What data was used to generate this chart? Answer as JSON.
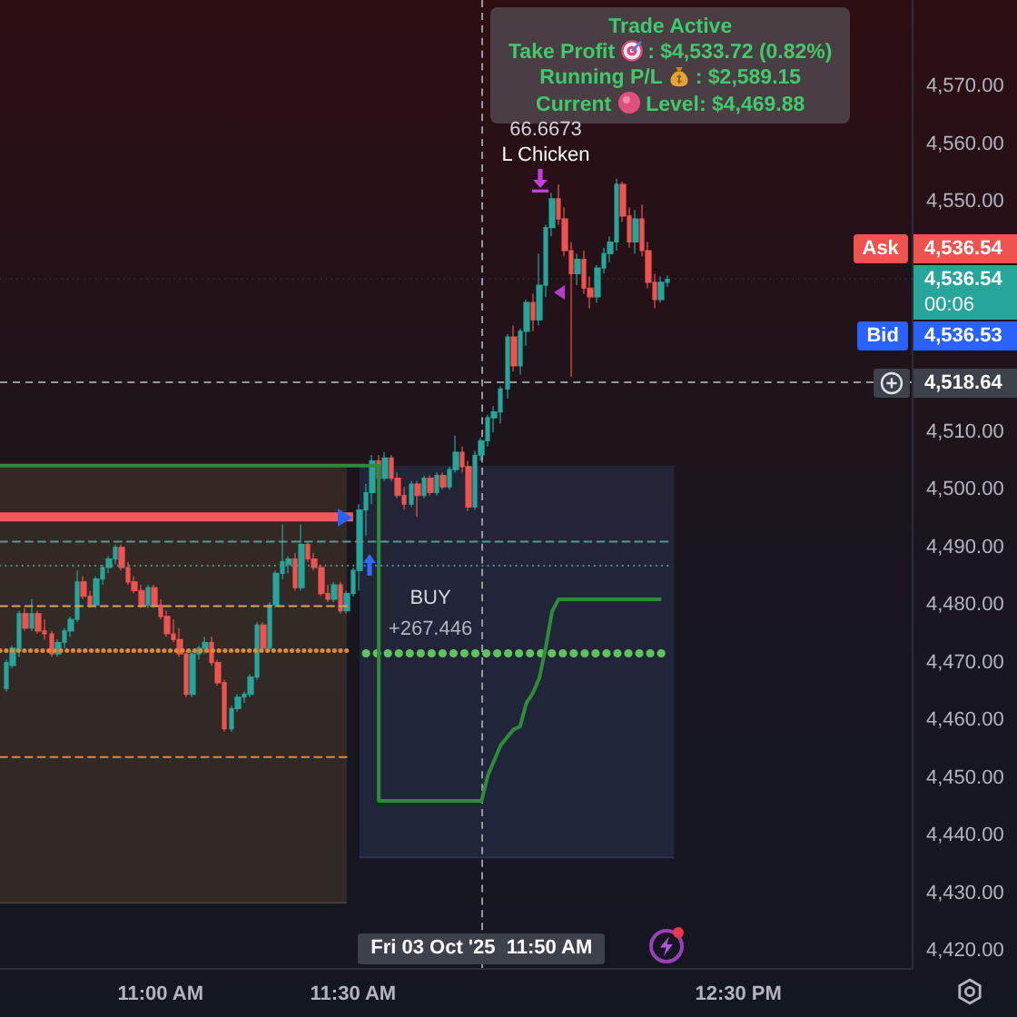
{
  "chart_data": {
    "type": "candlestick",
    "x": [
      "2025-10-03T10:36",
      "2025-10-03T10:37",
      "2025-10-03T10:38",
      "2025-10-03T10:39",
      "2025-10-03T10:40",
      "2025-10-03T10:41",
      "2025-10-03T10:42",
      "2025-10-03T10:43",
      "2025-10-03T10:44",
      "2025-10-03T10:45",
      "2025-10-03T10:46",
      "2025-10-03T10:47",
      "2025-10-03T10:48",
      "2025-10-03T10:49",
      "2025-10-03T10:50",
      "2025-10-03T10:51",
      "2025-10-03T10:52",
      "2025-10-03T10:53",
      "2025-10-03T10:54",
      "2025-10-03T10:55",
      "2025-10-03T10:56",
      "2025-10-03T10:57",
      "2025-10-03T10:58",
      "2025-10-03T10:59",
      "2025-10-03T11:00",
      "2025-10-03T11:01",
      "2025-10-03T11:02",
      "2025-10-03T11:03",
      "2025-10-03T11:04",
      "2025-10-03T11:05",
      "2025-10-03T11:06",
      "2025-10-03T11:07",
      "2025-10-03T11:08",
      "2025-10-03T11:09",
      "2025-10-03T11:10",
      "2025-10-03T11:11",
      "2025-10-03T11:12",
      "2025-10-03T11:13",
      "2025-10-03T11:14",
      "2025-10-03T11:15",
      "2025-10-03T11:16",
      "2025-10-03T11:17",
      "2025-10-03T11:18",
      "2025-10-03T11:19",
      "2025-10-03T11:20",
      "2025-10-03T11:21",
      "2025-10-03T11:22",
      "2025-10-03T11:23",
      "2025-10-03T11:24",
      "2025-10-03T11:25",
      "2025-10-03T11:26",
      "2025-10-03T11:27",
      "2025-10-03T11:28",
      "2025-10-03T11:29",
      "2025-10-03T11:30",
      "2025-10-03T11:31",
      "2025-10-03T11:32",
      "2025-10-03T11:33",
      "2025-10-03T11:34",
      "2025-10-03T11:35",
      "2025-10-03T11:36",
      "2025-10-03T11:37",
      "2025-10-03T11:38",
      "2025-10-03T11:39",
      "2025-10-03T11:40",
      "2025-10-03T11:41",
      "2025-10-03T11:42",
      "2025-10-03T11:43",
      "2025-10-03T11:44",
      "2025-10-03T11:45",
      "2025-10-03T11:46",
      "2025-10-03T11:47",
      "2025-10-03T11:48",
      "2025-10-03T11:49",
      "2025-10-03T11:50",
      "2025-10-03T11:51",
      "2025-10-03T11:52",
      "2025-10-03T11:53",
      "2025-10-03T11:54",
      "2025-10-03T11:55",
      "2025-10-03T11:56",
      "2025-10-03T11:57",
      "2025-10-03T11:58",
      "2025-10-03T11:59",
      "2025-10-03T12:00",
      "2025-10-03T12:01",
      "2025-10-03T12:02",
      "2025-10-03T12:03",
      "2025-10-03T12:04",
      "2025-10-03T12:05",
      "2025-10-03T12:06",
      "2025-10-03T12:07",
      "2025-10-03T12:08",
      "2025-10-03T12:09",
      "2025-10-03T12:10",
      "2025-10-03T12:11",
      "2025-10-03T12:12",
      "2025-10-03T12:13",
      "2025-10-03T12:14",
      "2025-10-03T12:15",
      "2025-10-03T12:16",
      "2025-10-03T12:17",
      "2025-10-03T12:18",
      "2025-10-03T12:19"
    ],
    "ohlc": [
      [
        4465.5,
        4470.5,
        4465,
        4470
      ],
      [
        4469.5,
        4473,
        4469,
        4472.5
      ],
      [
        4472,
        4479,
        4471,
        4478.5
      ],
      [
        4478.5,
        4479.5,
        4475.5,
        4476
      ],
      [
        4476,
        4481,
        4475.5,
        4478.5
      ],
      [
        4478.5,
        4479,
        4475,
        4475.5
      ],
      [
        4475.5,
        4477.5,
        4474,
        4475
      ],
      [
        4475,
        4475.5,
        4471,
        4471.5
      ],
      [
        4471.5,
        4474,
        4471,
        4473.5
      ],
      [
        4473.5,
        4476,
        4472.5,
        4475.5
      ],
      [
        4475.5,
        4478,
        4474.5,
        4477.5
      ],
      [
        4477.5,
        4486,
        4477,
        4484
      ],
      [
        4484,
        4485,
        4481,
        4481.5
      ],
      [
        4481.5,
        4482.5,
        4479.5,
        4480
      ],
      [
        4480,
        4485,
        4479.5,
        4484.5
      ],
      [
        4484.5,
        4487,
        4483.5,
        4486.5
      ],
      [
        4486.5,
        4488.5,
        4485.5,
        4488
      ],
      [
        4488,
        4490.5,
        4487,
        4490
      ],
      [
        4490,
        4490.5,
        4486,
        4486.5
      ],
      [
        4486.5,
        4487.5,
        4483.5,
        4484
      ],
      [
        4484,
        4485,
        4482,
        4482.5
      ],
      [
        4482.5,
        4483.5,
        4479.5,
        4480
      ],
      [
        4480,
        4483.5,
        4479.5,
        4483
      ],
      [
        4483,
        4483.5,
        4479.5,
        4480
      ],
      [
        4480,
        4481,
        4477.5,
        4478
      ],
      [
        4478,
        4479,
        4474.5,
        4475
      ],
      [
        4475,
        4477.5,
        4473.5,
        4474
      ],
      [
        4474,
        4476,
        4471,
        4471.5
      ],
      [
        4471.5,
        4472,
        4464,
        4464.5
      ],
      [
        4464.5,
        4472,
        4464,
        4471.5
      ],
      [
        4471.5,
        4473,
        4470.5,
        4472.5
      ],
      [
        4472.5,
        4474.5,
        4471.5,
        4473.5
      ],
      [
        4473.5,
        4474.5,
        4469.5,
        4470
      ],
      [
        4470,
        4470.5,
        4466,
        4466.5
      ],
      [
        4466.5,
        4467,
        4458,
        4458.5
      ],
      [
        4458.5,
        4462.5,
        4458,
        4462
      ],
      [
        4462,
        4464.5,
        4461.5,
        4464
      ],
      [
        4464,
        4465,
        4463,
        4464.5
      ],
      [
        4464.5,
        4468,
        4464,
        4467.5
      ],
      [
        4467.5,
        4477,
        4467,
        4476.5
      ],
      [
        4476.5,
        4477,
        4472,
        4472.5
      ],
      [
        4472.5,
        4480.5,
        4472,
        4480
      ],
      [
        4480,
        4486,
        4479.5,
        4485.5
      ],
      [
        4485.5,
        4494,
        4484.5,
        4487.5
      ],
      [
        4487,
        4488.5,
        4485.5,
        4488
      ],
      [
        4488,
        4489,
        4482.5,
        4483
      ],
      [
        4483,
        4494,
        4482.5,
        4490.5
      ],
      [
        4490.5,
        4491,
        4487.5,
        4488
      ],
      [
        4488,
        4489,
        4486,
        4486.5
      ],
      [
        4486.5,
        4487,
        4481.5,
        4482
      ],
      [
        4482,
        4483.5,
        4480.5,
        4481
      ],
      [
        4481,
        4484,
        4480.5,
        4483.5
      ],
      [
        4483.5,
        4484,
        4478.5,
        4479
      ],
      [
        4479,
        4482.5,
        4478.5,
        4482
      ],
      [
        4482,
        4486.5,
        4481.5,
        4486
      ],
      [
        4486,
        4497.5,
        4482.5,
        4496.5
      ],
      [
        4496.5,
        4501,
        4492,
        4499.5
      ],
      [
        4499.5,
        4506,
        4497.5,
        4505
      ],
      [
        4505,
        4506,
        4501.5,
        4502
      ],
      [
        4502,
        4506.5,
        4501.5,
        4505.5
      ],
      [
        4505.5,
        4506,
        4501.5,
        4502
      ],
      [
        4502,
        4503,
        4498.5,
        4499
      ],
      [
        4499,
        4500.5,
        4496.5,
        4497.5
      ],
      [
        4497.5,
        4501.5,
        4497,
        4501
      ],
      [
        4501,
        4501.5,
        4495.3,
        4499
      ],
      [
        4499,
        4502.5,
        4498.5,
        4502
      ],
      [
        4502,
        4502.5,
        4499,
        4499.5
      ],
      [
        4499.5,
        4503,
        4499,
        4502.5
      ],
      [
        4502.5,
        4503,
        4500,
        4500.5
      ],
      [
        4500.5,
        4504,
        4500,
        4503.5
      ],
      [
        4503.5,
        4509.4,
        4503,
        4506.5
      ],
      [
        4506.5,
        4507.5,
        4503,
        4504
      ],
      [
        4504,
        4505,
        4496.3,
        4497
      ],
      [
        4497,
        4506.8,
        4496.5,
        4506
      ],
      [
        4506,
        4509,
        4505,
        4508.5
      ],
      [
        4508.5,
        4513,
        4507.5,
        4512.5
      ],
      [
        4512.5,
        4514.5,
        4510,
        4513.5
      ],
      [
        4513.5,
        4518,
        4511.5,
        4517.5
      ],
      [
        4517.5,
        4527,
        4515.8,
        4526.5
      ],
      [
        4526.5,
        4528.5,
        4520.5,
        4521.5
      ],
      [
        4521.5,
        4528,
        4520,
        4527.5
      ],
      [
        4527.5,
        4533,
        4525,
        4532.5
      ],
      [
        4532.5,
        4534,
        4527.5,
        4529.5
      ],
      [
        4529.5,
        4541,
        4528.5,
        4535.5
      ],
      [
        4535.5,
        4546,
        4533.5,
        4545.5
      ],
      [
        4545.5,
        4551.5,
        4544,
        4550.5
      ],
      [
        4550.5,
        4553,
        4546,
        4547
      ],
      [
        4547,
        4549,
        4540.5,
        4541.5
      ],
      [
        4541.5,
        4543,
        4519.6,
        4537.5
      ],
      [
        4537.5,
        4541,
        4535.5,
        4540
      ],
      [
        4540,
        4541.5,
        4534,
        4535
      ],
      [
        4535,
        4537,
        4531.5,
        4533.5
      ],
      [
        4533.5,
        4539,
        4532.5,
        4538.5
      ],
      [
        4538.5,
        4542,
        4537.5,
        4541
      ],
      [
        4541,
        4544,
        4539.5,
        4543
      ],
      [
        4543,
        4554,
        4541.5,
        4553
      ],
      [
        4553,
        4553.5,
        4546.5,
        4547.5
      ],
      [
        4547.5,
        4549,
        4542,
        4543
      ],
      [
        4543,
        4548.5,
        4541,
        4547
      ],
      [
        4547,
        4549.5,
        4540.5,
        4541.5
      ],
      [
        4541.5,
        4543,
        4535,
        4536
      ],
      [
        4536,
        4537.5,
        4531.5,
        4533
      ],
      [
        4533,
        4537,
        4532.5,
        4536
      ],
      [
        4536,
        4537.2,
        4535.2,
        4536.54
      ]
    ],
    "series": [
      {
        "type": "line",
        "x": [
          "2025-10-03T10:35",
          "2025-10-03T11:34",
          "2025-10-03T11:34",
          "2025-10-03T11:50",
          "2025-10-03T11:51",
          "2025-10-03T11:53",
          "2025-10-03T11:55",
          "2025-10-03T11:56",
          "2025-10-03T11:57",
          "2025-10-03T11:58",
          "2025-10-03T11:59",
          "2025-10-03T12:00",
          "2025-10-03T12:01",
          "2025-10-03T12:02",
          "2025-10-03T12:18"
        ],
        "values": [
          4504.2,
          4504.2,
          4446,
          4446,
          4450.5,
          4455.7,
          4458.4,
          4458.9,
          4463,
          4464.7,
          4467.3,
          4472.6,
          4478.9,
          4481,
          4481
        ],
        "color": "#2e8b3a",
        "line_style": "solid"
      },
      {
        "type": "line",
        "x": [
          "2025-10-03T10:35",
          "2025-10-03T11:30"
        ],
        "values": [
          4495.3,
          4495.3
        ],
        "color": "#ef5b5b",
        "line_style": "solid"
      },
      {
        "type": "line",
        "x": [
          "2025-10-03T10:35",
          "2025-10-03T12:19"
        ],
        "values": [
          4491,
          4491
        ],
        "color": "#4f9d90",
        "line_style": "dashed"
      },
      {
        "type": "line",
        "x": [
          "2025-10-03T10:35",
          "2025-10-03T12:19"
        ],
        "values": [
          4486.8,
          4486.8
        ],
        "color": "#4f9d90",
        "line_style": "dotted"
      },
      {
        "type": "line",
        "x": [
          "2025-10-03T10:35",
          "2025-10-03T11:29"
        ],
        "values": [
          4479.8,
          4479.8
        ],
        "color": "#d9a93a",
        "line_style": "dashed"
      },
      {
        "type": "line",
        "x": [
          "2025-10-03T10:35",
          "2025-10-03T11:29"
        ],
        "values": [
          4472.1,
          4472.1
        ],
        "color": "#e08a2c",
        "line_style": "dotted"
      },
      {
        "type": "line",
        "x": [
          "2025-10-03T10:35",
          "2025-10-03T11:29"
        ],
        "values": [
          4453.6,
          4453.6
        ],
        "color": "#e08a2c",
        "line_style": "dashed"
      },
      {
        "type": "line",
        "x": [
          "2025-10-03T11:32",
          "2025-10-03T12:18"
        ],
        "values": [
          4471.6,
          4471.6
        ],
        "color": "#5cc45a",
        "line_style": "dotted"
      },
      {
        "type": "line",
        "x": [
          "2025-10-03T10:35",
          "2025-10-03T11:29"
        ],
        "values": [
          4428.3,
          4428.3
        ],
        "lower": [
          4428.3,
          4428.3
        ],
        "upper": [
          4504.2,
          4504.2
        ],
        "color": "#4d3b2c",
        "line_style": "solid"
      },
      {
        "type": "line",
        "x": [
          "2025-10-03T11:31",
          "2025-10-03T12:20"
        ],
        "values": [
          4436.2,
          4436.2
        ],
        "lower": [
          4436.2,
          4436.2
        ],
        "upper": [
          4504.2,
          4504.2
        ],
        "color": "#2c3452",
        "line_style": "solid"
      }
    ],
    "xlim": [
      "2025-10-03T10:35",
      "2025-10-03T12:57"
    ],
    "xticks": [
      {
        "value": "2025-10-03T11:00",
        "label": "11:00 AM"
      },
      {
        "value": "2025-10-03T11:30",
        "label": "11:30 AM"
      },
      {
        "value": "2025-10-03T12:30",
        "label": "12:30 PM"
      }
    ],
    "ylim": [
      4417,
      4585
    ],
    "yticks": [
      {
        "value": 4420,
        "label": "4,420.00"
      },
      {
        "value": 4430,
        "label": "4,430.00"
      },
      {
        "value": 4440,
        "label": "4,440.00"
      },
      {
        "value": 4450,
        "label": "4,450.00"
      },
      {
        "value": 4460,
        "label": "4,460.00"
      },
      {
        "value": 4470,
        "label": "4,470.00"
      },
      {
        "value": 4480,
        "label": "4,480.00"
      },
      {
        "value": 4490,
        "label": "4,490.00"
      },
      {
        "value": 4500,
        "label": "4,500.00"
      },
      {
        "value": 4510,
        "label": "4,510.00"
      },
      {
        "value": 4550,
        "label": "4,550.00"
      },
      {
        "value": 4560,
        "label": "4,560.00"
      },
      {
        "value": 4570,
        "label": "4,570.00"
      }
    ],
    "ref_lines": [
      {
        "axis": "y",
        "value": 4536.54,
        "label": "4,536.54",
        "color": "#26a69a",
        "line_style": "dotted"
      },
      {
        "axis": "y",
        "value": 4518.64,
        "label": "4,518.64",
        "color": "#9598a1",
        "line_style": "dashed"
      },
      {
        "axis": "x",
        "value": "2025-10-03T11:50",
        "label": "Fri 03 Oct '25  11:50 AM",
        "color": "#9598a1",
        "line_style": "dashed"
      }
    ],
    "annotations": [
      "Trade Active",
      "Take Profit",
      ": $4,533.72 (0.82%)",
      "Running P/L",
      ": $2,589.15",
      "Current",
      "Level: $4,469.88",
      "66.6673",
      "L Chicken",
      "BUY",
      "+267.446",
      "Ask 4,536.54",
      "Bid 4,536.53",
      "00:06"
    ]
  }
}
